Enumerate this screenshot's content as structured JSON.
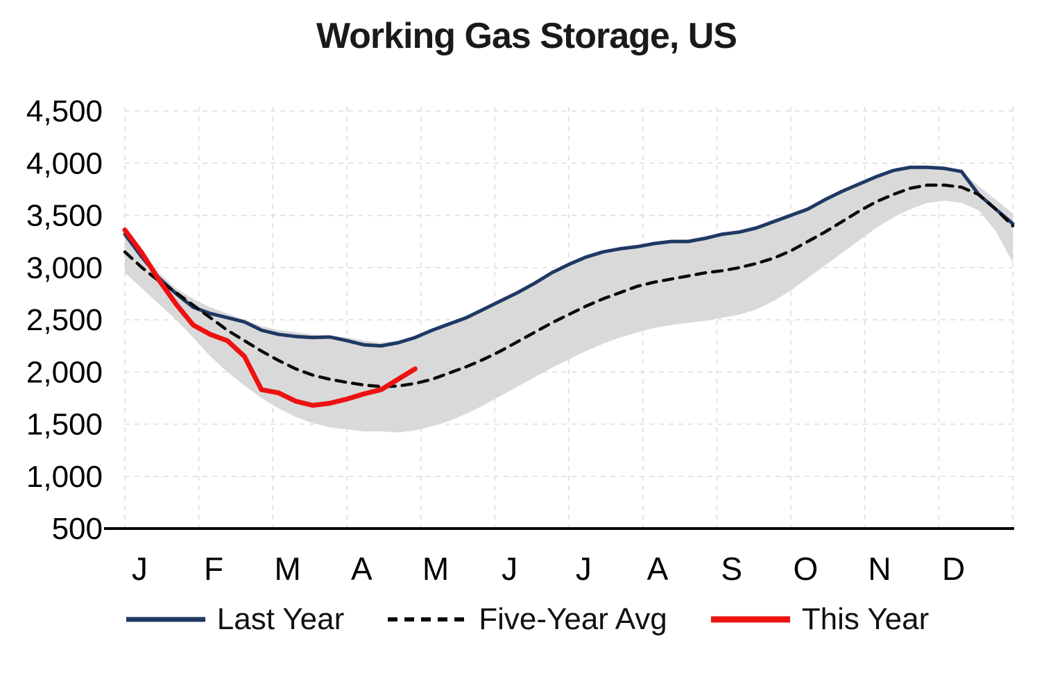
{
  "chart_data": {
    "type": "line",
    "title": "Working Gas Storage, US",
    "xlabel": "",
    "ylabel": "",
    "ylim": [
      500,
      4500
    ],
    "yticks": [
      500,
      1000,
      1500,
      2000,
      2500,
      3000,
      3500,
      4000,
      4500
    ],
    "grid": true,
    "grid_color": "#dcdcdc",
    "axis_color": "#000000",
    "legend_position": "bottom",
    "month_labels": [
      "J",
      "F",
      "M",
      "A",
      "M",
      "J",
      "J",
      "A",
      "S",
      "O",
      "N",
      "D"
    ],
    "band": {
      "name": "Five-Year Range",
      "color": "#d9d9d9",
      "upper": [
        3350,
        3150,
        2950,
        2800,
        2700,
        2620,
        2560,
        2500,
        2440,
        2400,
        2380,
        2360,
        2350,
        2330,
        2300,
        2280,
        2300,
        2340,
        2400,
        2460,
        2520,
        2600,
        2680,
        2760,
        2850,
        2950,
        3030,
        3100,
        3150,
        3180,
        3210,
        3240,
        3260,
        3270,
        3300,
        3330,
        3360,
        3400,
        3460,
        3520,
        3580,
        3660,
        3740,
        3810,
        3880,
        3930,
        3960,
        3960,
        3950,
        3920,
        3780,
        3650,
        3520
      ],
      "lower": [
        2950,
        2800,
        2650,
        2500,
        2330,
        2150,
        2000,
        1870,
        1750,
        1650,
        1570,
        1510,
        1470,
        1450,
        1430,
        1430,
        1420,
        1440,
        1480,
        1530,
        1600,
        1680,
        1770,
        1860,
        1950,
        2040,
        2120,
        2200,
        2270,
        2330,
        2380,
        2420,
        2450,
        2470,
        2490,
        2520,
        2550,
        2600,
        2680,
        2780,
        2900,
        3020,
        3140,
        3260,
        3380,
        3480,
        3560,
        3620,
        3640,
        3620,
        3550,
        3350,
        3050
      ]
    },
    "series": [
      {
        "name": "Last Year",
        "color": "#1f3864",
        "stroke_width": 5,
        "dash": "",
        "values": [
          3320,
          3100,
          2900,
          2750,
          2620,
          2560,
          2520,
          2480,
          2400,
          2360,
          2340,
          2330,
          2335,
          2300,
          2260,
          2250,
          2280,
          2330,
          2400,
          2460,
          2520,
          2600,
          2680,
          2760,
          2850,
          2950,
          3030,
          3100,
          3150,
          3180,
          3200,
          3230,
          3250,
          3250,
          3280,
          3320,
          3340,
          3380,
          3440,
          3500,
          3560,
          3650,
          3730,
          3800,
          3870,
          3930,
          3960,
          3960,
          3950,
          3920,
          3700,
          3560,
          3420
        ]
      },
      {
        "name": "Five-Year Avg",
        "color": "#0a0a0a",
        "stroke_width": 4.5,
        "dash": "14 10",
        "values": [
          3150,
          3000,
          2870,
          2760,
          2640,
          2520,
          2400,
          2300,
          2200,
          2110,
          2030,
          1970,
          1930,
          1900,
          1875,
          1860,
          1865,
          1890,
          1930,
          1990,
          2050,
          2120,
          2200,
          2290,
          2380,
          2470,
          2550,
          2630,
          2700,
          2760,
          2820,
          2860,
          2890,
          2920,
          2950,
          2970,
          3000,
          3040,
          3090,
          3160,
          3250,
          3340,
          3440,
          3540,
          3630,
          3700,
          3760,
          3790,
          3790,
          3770,
          3700,
          3560,
          3400
        ]
      },
      {
        "name": "This Year",
        "color": "#ee1111",
        "stroke_width": 7,
        "dash": "",
        "values": [
          3360,
          3140,
          2880,
          2650,
          2450,
          2360,
          2300,
          2150,
          1830,
          1800,
          1720,
          1680,
          1700,
          1740,
          1790,
          1830,
          1930,
          2030
        ]
      }
    ]
  }
}
